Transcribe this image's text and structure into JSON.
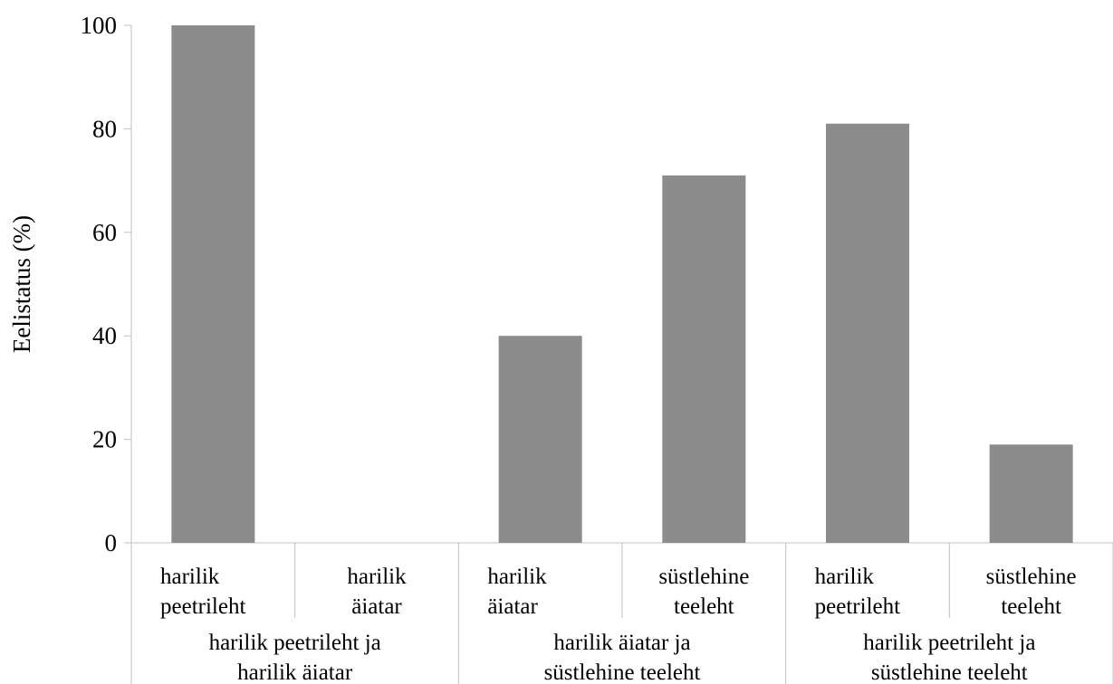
{
  "chart_data": {
    "type": "bar",
    "ylabel": "Eelistatus (%)",
    "xlabel": "",
    "ylim": [
      0,
      100
    ],
    "yticks": [
      0,
      20,
      40,
      60,
      80,
      100
    ],
    "grid": false,
    "legend": "none",
    "bar_color": "#8c8c8c",
    "axis_color": "#c0c0c0",
    "categories": [
      {
        "line1": "harilik",
        "line2": "peetrileht"
      },
      {
        "line1": "harilik",
        "line2": "äiatar"
      },
      {
        "line1": "harilik",
        "line2": "äiatar"
      },
      {
        "line1": "süstlehine",
        "line2": "teeleht"
      },
      {
        "line1": "harilik",
        "line2": "peetrileht"
      },
      {
        "line1": "süstlehine",
        "line2": "teeleht"
      }
    ],
    "values": [
      100,
      0,
      40,
      71,
      81,
      19
    ],
    "groups": [
      {
        "line1": "harilik peetrileht ja",
        "line2": "harilik äiatar"
      },
      {
        "line1": "harilik äiatar ja",
        "line2": "süstlehine teeleht"
      },
      {
        "line1": "harilik peetrileht ja",
        "line2": "süstlehine teeleht"
      }
    ]
  }
}
